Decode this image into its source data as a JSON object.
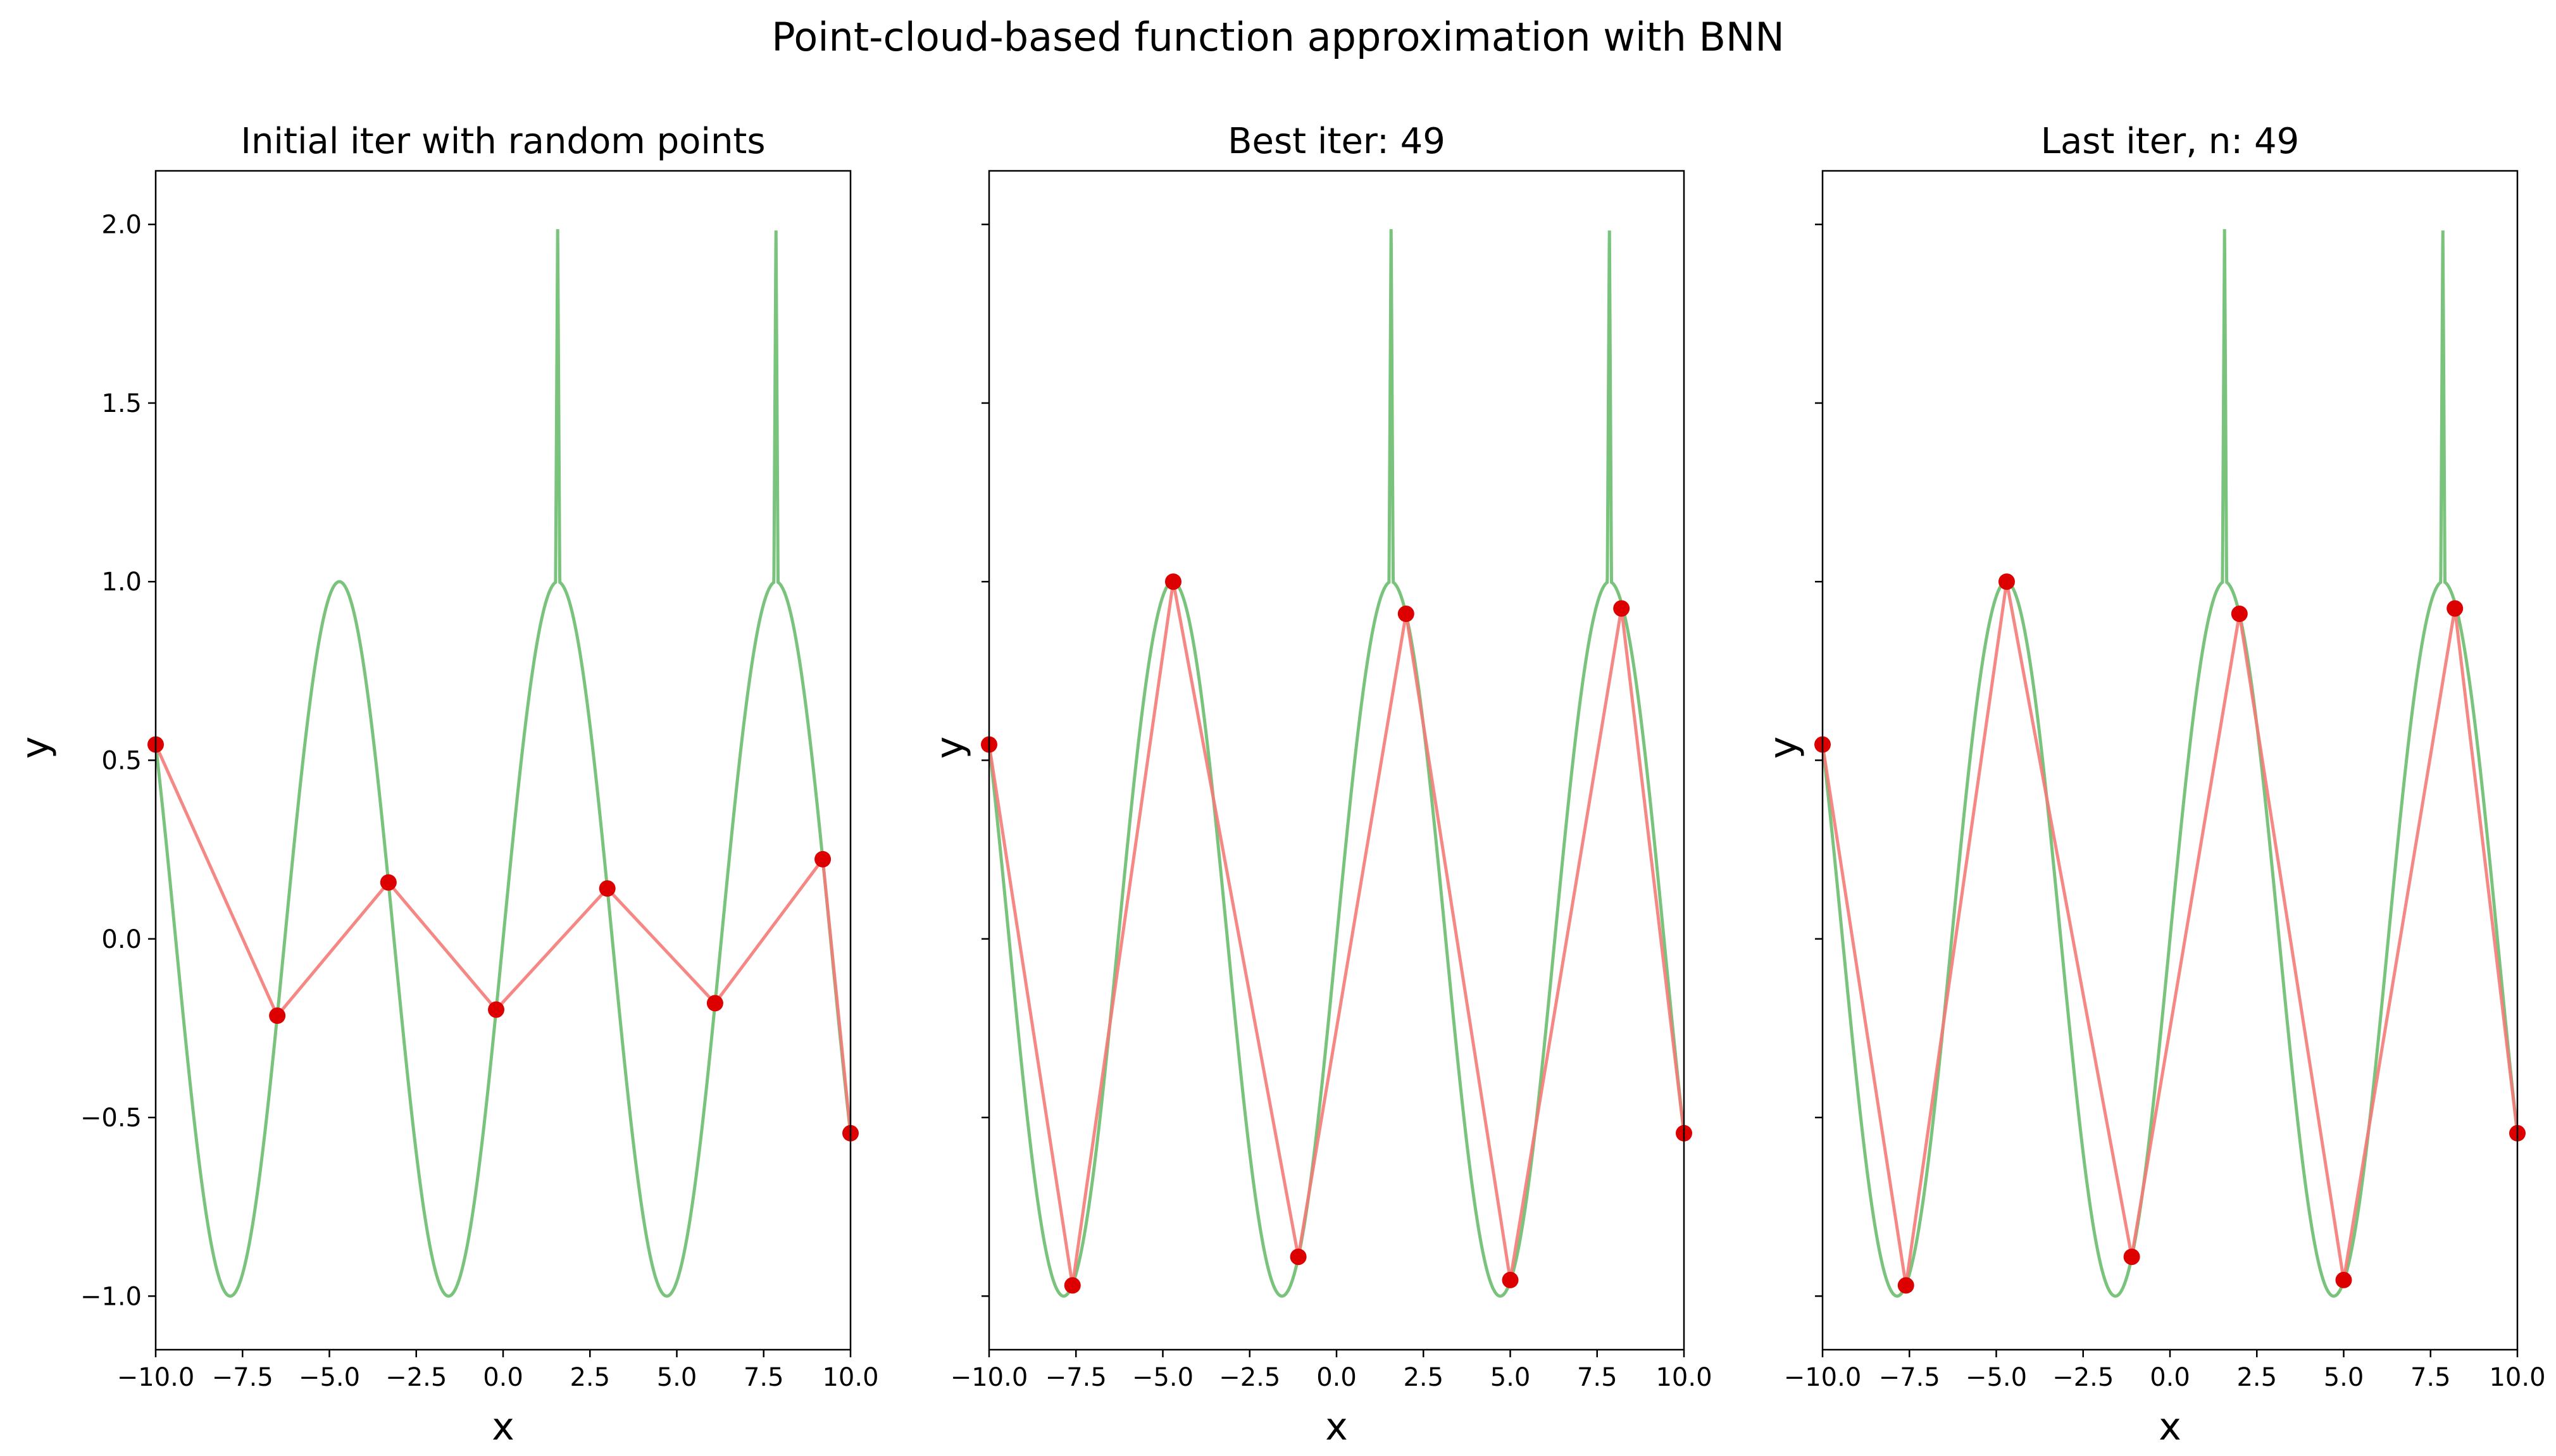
{
  "figure": {
    "title": "Point-cloud-based function approximation with BNN"
  },
  "colors": {
    "true_function": "#4caf50",
    "approximation_line": "#f47b78",
    "points": "#dd0000",
    "axes": "#000000",
    "background": "#ffffff"
  },
  "chart_data": [
    {
      "type": "line",
      "title": "Initial iter with random points",
      "xlabel": "x",
      "ylabel": "y",
      "xlim": [
        -10,
        10
      ],
      "ylim": [
        -1.15,
        2.15
      ],
      "xticks": [
        "−10.0",
        "−7.5",
        "−5.0",
        "−2.5",
        "0.0",
        "2.5",
        "5.0",
        "7.5",
        "10.0"
      ],
      "yticks": [
        "−1.0",
        "−0.5",
        "0.0",
        "0.5",
        "1.0",
        "1.5",
        "2.0"
      ],
      "show_yticklabels": true,
      "grid": false,
      "series": [
        {
          "kind": "true_function",
          "description": "sin(x) with narrow spikes to 2.0 at x≈1.57 and x≈7.85"
        },
        {
          "kind": "approximation",
          "x": [
            -10.0,
            -6.5,
            -3.3,
            -0.2,
            3.0,
            6.1,
            9.2,
            10.0
          ],
          "y": [
            0.544,
            -0.215,
            0.158,
            -0.198,
            0.141,
            -0.18,
            0.223,
            -0.544
          ]
        }
      ]
    },
    {
      "type": "line",
      "title": "Best iter: 49",
      "xlabel": "x",
      "ylabel": "y",
      "xlim": [
        -10,
        10
      ],
      "ylim": [
        -1.15,
        2.15
      ],
      "xticks": [
        "−10.0",
        "−7.5",
        "−5.0",
        "−2.5",
        "0.0",
        "2.5",
        "5.0",
        "7.5",
        "10.0"
      ],
      "yticks": [
        "−1.0",
        "−0.5",
        "0.0",
        "0.5",
        "1.0",
        "1.5",
        "2.0"
      ],
      "show_yticklabels": false,
      "grid": false,
      "series": [
        {
          "kind": "true_function",
          "description": "sin(x) with narrow spikes to 2.0 at x≈1.57 and x≈7.85"
        },
        {
          "kind": "approximation",
          "x": [
            -10.0,
            -7.6,
            -4.7,
            -1.1,
            2.0,
            5.0,
            8.2,
            10.0
          ],
          "y": [
            0.544,
            -0.97,
            1.0,
            -0.89,
            0.91,
            -0.955,
            0.925,
            -0.544
          ]
        }
      ]
    },
    {
      "type": "line",
      "title": "Last iter, n: 49",
      "xlabel": "x",
      "ylabel": "y",
      "xlim": [
        -10,
        10
      ],
      "ylim": [
        -1.15,
        2.15
      ],
      "xticks": [
        "−10.0",
        "−7.5",
        "−5.0",
        "−2.5",
        "0.0",
        "2.5",
        "5.0",
        "7.5",
        "10.0"
      ],
      "yticks": [
        "−1.0",
        "−0.5",
        "0.0",
        "0.5",
        "1.0",
        "1.5",
        "2.0"
      ],
      "show_yticklabels": false,
      "grid": false,
      "series": [
        {
          "kind": "true_function",
          "description": "sin(x) with narrow spikes to 2.0 at x≈1.57 and x≈7.85"
        },
        {
          "kind": "approximation",
          "x": [
            -10.0,
            -7.6,
            -4.7,
            -1.1,
            2.0,
            5.0,
            8.2,
            10.0
          ],
          "y": [
            0.544,
            -0.97,
            1.0,
            -0.89,
            0.91,
            -0.955,
            0.925,
            -0.544
          ]
        }
      ]
    }
  ]
}
